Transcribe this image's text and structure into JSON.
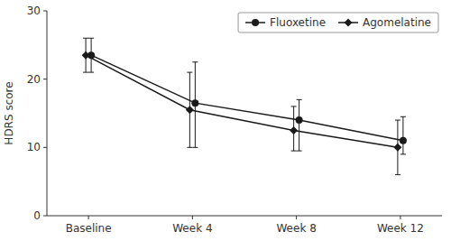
{
  "chart_data": {
    "type": "line",
    "categories": [
      "Baseline",
      "Week 4",
      "Week 8",
      "Week 12"
    ],
    "ylabel": "HDRS score",
    "ylim": [
      0,
      30
    ],
    "yticks": [
      0,
      10,
      20,
      30
    ],
    "grid": false,
    "legend": "upper right",
    "series": [
      {
        "name": "Fluoxetine",
        "color": "#1a1a1a",
        "marker": "circle",
        "line_style": "solid",
        "values": [
          23.5,
          16.5,
          14.0,
          11.0
        ],
        "yerr_lo": [
          2.5,
          6.5,
          4.5,
          2.0
        ],
        "yerr_hi": [
          2.5,
          6.0,
          3.0,
          3.5
        ]
      },
      {
        "name": "Agomelatine",
        "color": "#1a1a1a",
        "marker": "diamond",
        "line_style": "solid",
        "values": [
          23.5,
          15.5,
          12.5,
          10.0
        ],
        "yerr_lo": [
          2.5,
          5.5,
          3.0,
          4.0
        ],
        "yerr_hi": [
          2.5,
          5.5,
          3.5,
          4.0
        ]
      }
    ]
  }
}
